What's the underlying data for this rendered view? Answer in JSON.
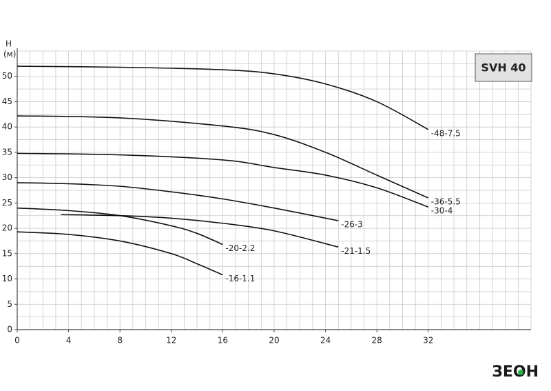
{
  "chart_data": {
    "type": "line",
    "y_label": "H",
    "y_unit": "(м)",
    "badge": "SVH 40",
    "logo": "ЗЕОН",
    "xlim": [
      0,
      40
    ],
    "xticks": [
      0,
      4,
      8,
      12,
      16,
      20,
      24,
      28,
      32
    ],
    "ylim": [
      0,
      55
    ],
    "yticks": [
      0,
      5,
      10,
      15,
      20,
      25,
      30,
      35,
      40,
      45,
      50
    ],
    "grid": true,
    "grid_step_x": 1,
    "grid_step_y": 2.5,
    "series": [
      {
        "name": "-48-7.5",
        "color": "#111111",
        "x": [
          0,
          8,
          16,
          20,
          24,
          28,
          32
        ],
        "values": [
          52,
          51.8,
          51.3,
          50.5,
          48.5,
          45,
          39.5
        ]
      },
      {
        "name": "-36-5.5",
        "color": "#111111",
        "x": [
          0,
          8,
          16,
          20,
          24,
          28,
          32
        ],
        "values": [
          42.2,
          41.8,
          40.2,
          38.5,
          35,
          30.5,
          26
        ]
      },
      {
        "name": "-30-4",
        "color": "#111111",
        "x": [
          0,
          8,
          16,
          20,
          24,
          28,
          32
        ],
        "values": [
          34.8,
          34.5,
          33.5,
          32,
          30.5,
          28,
          24.2
        ]
      },
      {
        "name": "-26-3",
        "color": "#111111",
        "x": [
          0,
          4,
          8,
          12,
          16,
          20,
          25
        ],
        "values": [
          29,
          28.8,
          28.3,
          27.2,
          25.8,
          24,
          21.5
        ]
      },
      {
        "name": "-21-1.5",
        "color": "#111111",
        "x": [
          3.4,
          8,
          12,
          16,
          20,
          25
        ],
        "values": [
          22.7,
          22.5,
          22,
          21,
          19.5,
          16.3
        ]
      },
      {
        "name": "-20-2.2",
        "color": "#111111",
        "x": [
          0,
          4,
          8,
          12,
          14,
          16
        ],
        "values": [
          24,
          23.5,
          22.5,
          20.5,
          19,
          16.8
        ]
      },
      {
        "name": "-16-1.1",
        "color": "#111111",
        "x": [
          0,
          4,
          8,
          12,
          14,
          16
        ],
        "values": [
          19.3,
          18.8,
          17.5,
          15,
          13,
          10.8
        ]
      }
    ]
  }
}
